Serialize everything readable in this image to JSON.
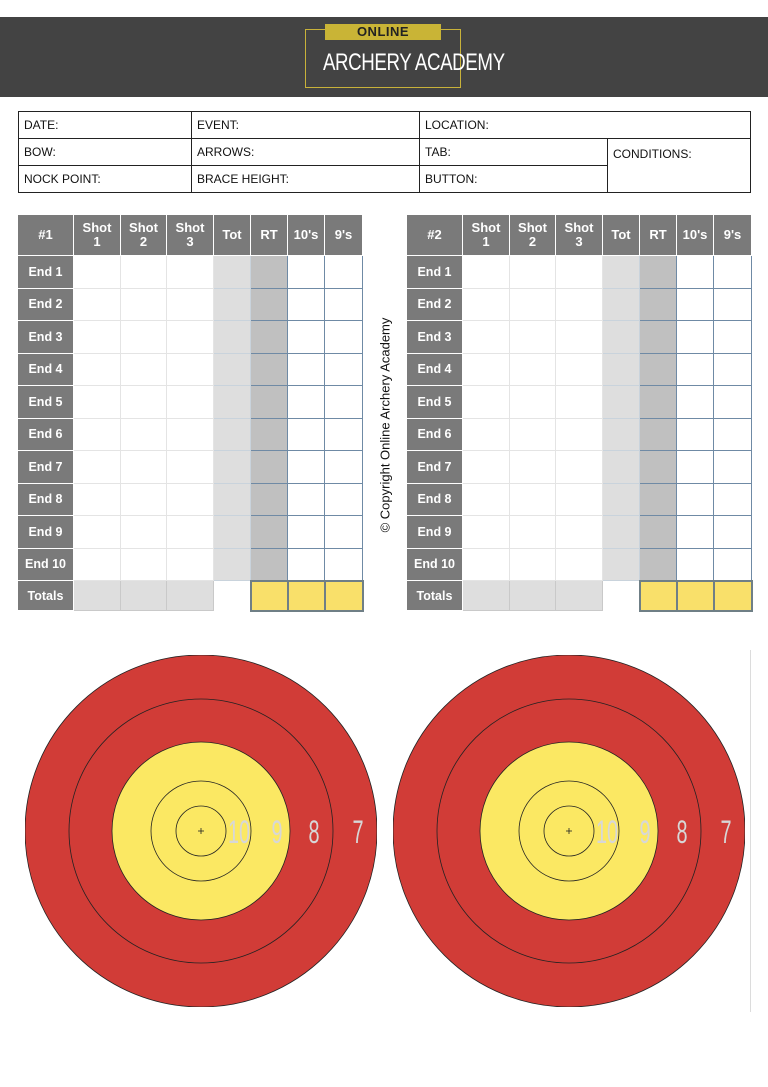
{
  "header": {
    "logo_top": "ONLINE",
    "logo_main": "ARCHERY ACADEMY"
  },
  "info": {
    "date": "DATE:",
    "event": "EVENT:",
    "location": "LOCATION:",
    "bow": "BOW:",
    "arrows": "ARROWS:",
    "tab": "TAB:",
    "conditions": "CONDITIONS:",
    "nock_point": "NOCK POINT:",
    "brace_height": "BRACE HEIGHT:",
    "button": "BUTTON:"
  },
  "scorecards": [
    {
      "id": "#1",
      "columns": [
        "Shot\n1",
        "Shot\n2",
        "Shot\n3",
        "Tot",
        "RT",
        "10's",
        "9's"
      ],
      "rows": [
        "End 1",
        "End 2",
        "End 3",
        "End 4",
        "End 5",
        "End 6",
        "End 7",
        "End 8",
        "End 9",
        "End 10"
      ],
      "totals_label": "Totals"
    },
    {
      "id": "#2",
      "columns": [
        "Shot\n1",
        "Shot\n2",
        "Shot\n3",
        "Tot",
        "RT",
        "10's",
        "9's"
      ],
      "rows": [
        "End 1",
        "End 2",
        "End 3",
        "End 4",
        "End 5",
        "End 6",
        "End 7",
        "End 8",
        "End 9",
        "End 10"
      ],
      "totals_label": "Totals"
    }
  ],
  "copyright": "© Copyright Online Archery Academy",
  "targets": {
    "ring_labels": [
      "10",
      "9",
      "8",
      "7"
    ],
    "colors": {
      "red": "#d13c37",
      "yellow": "#fbe863",
      "label": "#d7d7d7"
    }
  }
}
